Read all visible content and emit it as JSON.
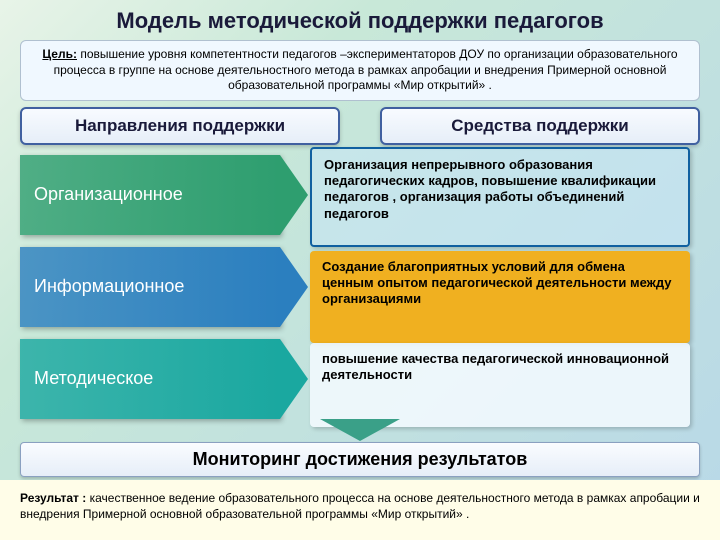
{
  "title": "Модель методической поддержки педагогов",
  "goal_label": "Цель:",
  "goal_text": " повышение уровня компетентности педагогов –экспериментаторов ДОУ по организации образовательного процесса в группе на основе деятельностного метода в рамках апробации и внедрения Примерной основной образовательной программы «Мир открытий» .",
  "header_left": "Направления  поддержки",
  "header_right": "Средства поддержки",
  "arrows": [
    {
      "label": "Организационное",
      "color": "#2e9e6f"
    },
    {
      "label": "Информационное",
      "color": "#2b7fbf"
    },
    {
      "label": "Методическое",
      "color": "#1aa8a0"
    }
  ],
  "content1": "Организация непрерывного образования педагогических кадров, повышение квалификации педагогов , организация работы объединений педагогов",
  "content2": "Создание благоприятных условий для обмена ценным опытом педагогической деятельности между организациями",
  "content2_bg": "#f0b020",
  "content3": "повышение качества педагогической инновационной деятельности",
  "down_arrow_color": "#3aa088",
  "monitoring": "Мониторинг достижения результатов",
  "result_label": "Результат :",
  "result_text": " качественное ведение   образовательного процесса на основе деятельностного метода в рамках апробации и внедрения Примерной основной образовательной программы «Мир открытий» ."
}
